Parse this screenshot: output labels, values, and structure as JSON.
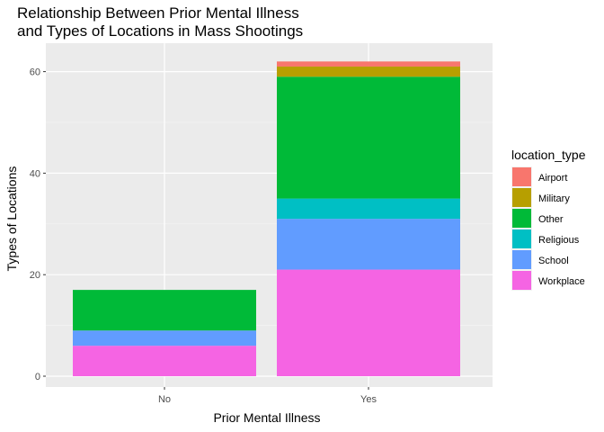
{
  "chart_data": {
    "type": "bar",
    "stacked": true,
    "title": "Relationship Between Prior Mental Illness\nand Types of Locations in Mass Shootings",
    "xlabel": "Prior Mental Illness",
    "ylabel": "Types of Locations",
    "categories": [
      "No",
      "Yes"
    ],
    "ylim": [
      0,
      65
    ],
    "yticks": [
      0,
      20,
      40,
      60
    ],
    "grid": true,
    "legend": {
      "title": "location_type",
      "position": "right"
    },
    "series": [
      {
        "name": "Airport",
        "color": "#F8766D",
        "values": [
          0,
          1
        ]
      },
      {
        "name": "Military",
        "color": "#B79F00",
        "values": [
          0,
          2
        ]
      },
      {
        "name": "Other",
        "color": "#00BA38",
        "values": [
          8,
          24
        ]
      },
      {
        "name": "Religious",
        "color": "#00BFC4",
        "values": [
          0,
          4
        ]
      },
      {
        "name": "School",
        "color": "#619CFF",
        "values": [
          3,
          10
        ]
      },
      {
        "name": "Workplace",
        "color": "#F564E3",
        "values": [
          6,
          21
        ]
      }
    ]
  }
}
